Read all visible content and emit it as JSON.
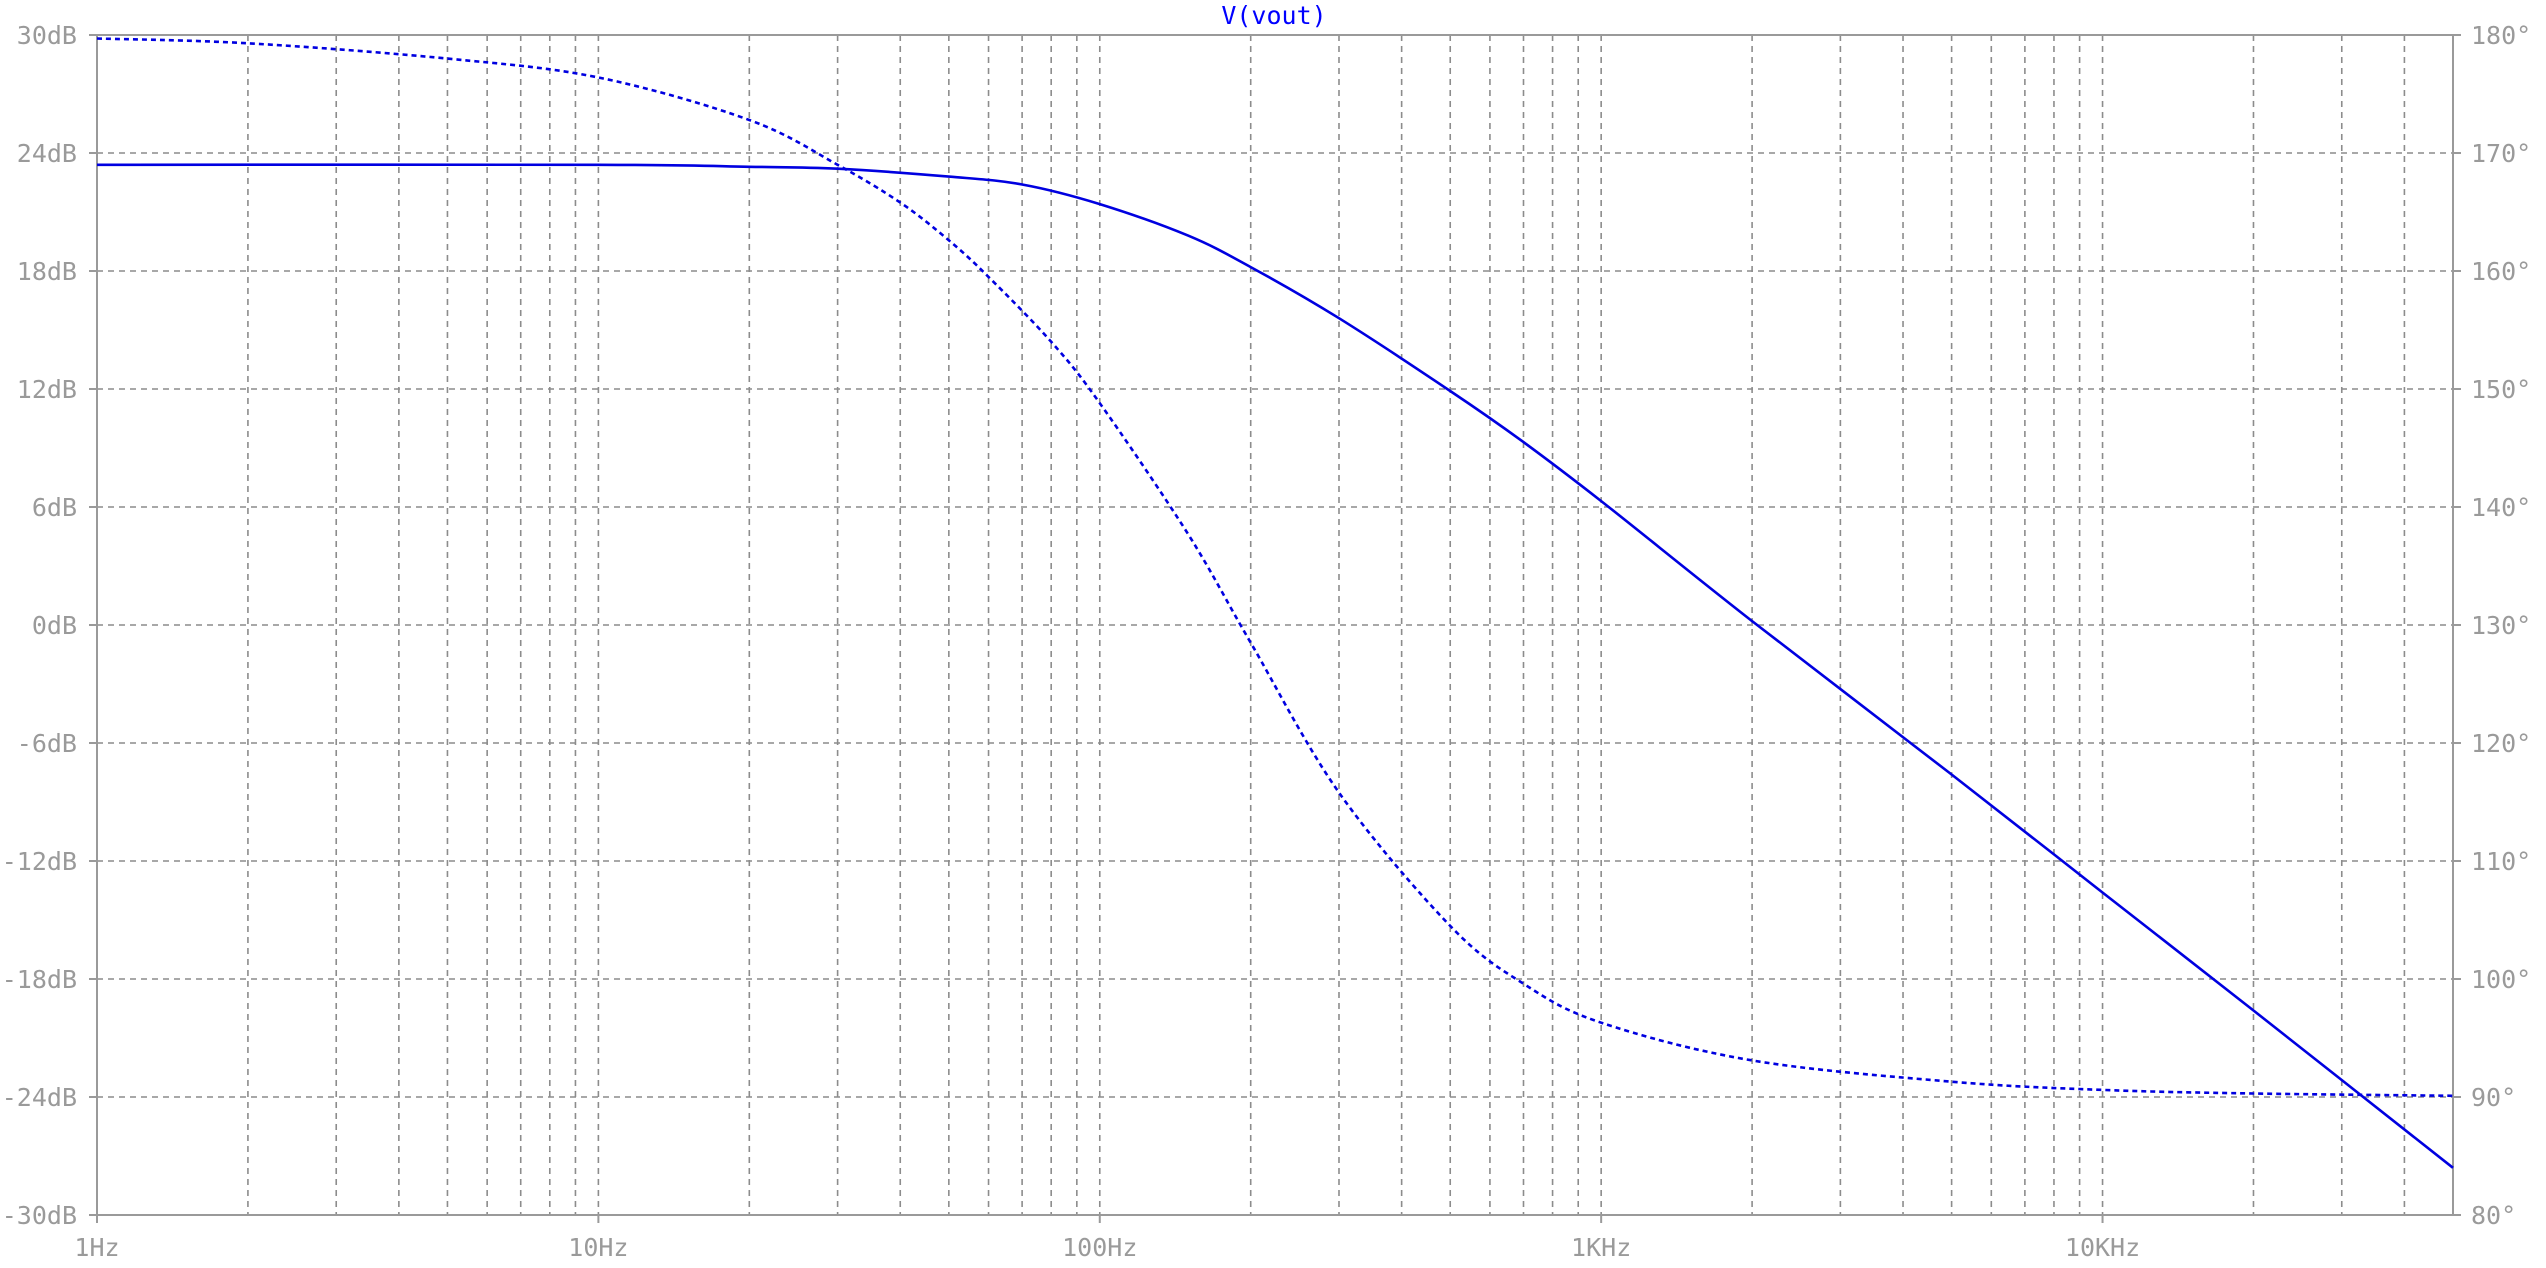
{
  "chart_data": {
    "type": "line",
    "title": "V(vout)",
    "x_scale": "log",
    "xlim": [
      1,
      50000
    ],
    "x_ticks": [
      {
        "value": 1,
        "label": "1Hz"
      },
      {
        "value": 10,
        "label": "10Hz"
      },
      {
        "value": 100,
        "label": "100Hz"
      },
      {
        "value": 1000,
        "label": "1KHz"
      },
      {
        "value": 10000,
        "label": "10KHz"
      }
    ],
    "y_left": {
      "unit": "dB",
      "ylim": [
        -30,
        30
      ],
      "ticks": [
        {
          "value": 30,
          "label": "30dB"
        },
        {
          "value": 24,
          "label": "24dB"
        },
        {
          "value": 18,
          "label": "18dB"
        },
        {
          "value": 12,
          "label": "12dB"
        },
        {
          "value": 6,
          "label": "6dB"
        },
        {
          "value": 0,
          "label": "0dB"
        },
        {
          "value": -6,
          "label": "-6dB"
        },
        {
          "value": -12,
          "label": "-12dB"
        },
        {
          "value": -18,
          "label": "-18dB"
        },
        {
          "value": -24,
          "label": "-24dB"
        },
        {
          "value": -30,
          "label": "-30dB"
        }
      ]
    },
    "y_right": {
      "unit": "°",
      "ylim": [
        80,
        180
      ],
      "ticks": [
        {
          "value": 180,
          "label": "180°"
        },
        {
          "value": 170,
          "label": "170°"
        },
        {
          "value": 160,
          "label": "160°"
        },
        {
          "value": 150,
          "label": "150°"
        },
        {
          "value": 140,
          "label": "140°"
        },
        {
          "value": 130,
          "label": "130°"
        },
        {
          "value": 120,
          "label": "120°"
        },
        {
          "value": 110,
          "label": "110°"
        },
        {
          "value": 100,
          "label": "100°"
        },
        {
          "value": 90,
          "label": "90°"
        },
        {
          "value": 80,
          "label": "80°"
        }
      ]
    },
    "grid": true,
    "series": [
      {
        "axis": "left",
        "style": "solid",
        "color": "#0000e0",
        "x": [
          1,
          10,
          20,
          30,
          50,
          70,
          100,
          150,
          200,
          300,
          500,
          700,
          1000,
          2000,
          5000,
          10000,
          20000,
          50000
        ],
        "y": [
          23.4,
          23.4,
          23.3,
          23.2,
          22.8,
          22.4,
          21.4,
          19.8,
          18.2,
          15.6,
          11.9,
          9.3,
          6.3,
          0.2,
          -7.6,
          -13.6,
          -19.6,
          -27.6
        ]
      },
      {
        "axis": "right",
        "style": "dashed",
        "color": "#0000e0",
        "x": [
          1,
          2,
          5,
          10,
          20,
          30,
          40,
          50,
          60,
          80,
          100,
          150,
          200,
          300,
          500,
          700,
          1000,
          2000,
          5000,
          10000,
          20000,
          50000
        ],
        "y": [
          179.7,
          179.3,
          178.0,
          176.4,
          172.8,
          169.0,
          165.8,
          162.6,
          159.5,
          154.0,
          148.8,
          137.7,
          128.5,
          115.8,
          104.5,
          99.6,
          96.3,
          93.1,
          91.3,
          90.6,
          90.3,
          90.1
        ]
      }
    ]
  }
}
